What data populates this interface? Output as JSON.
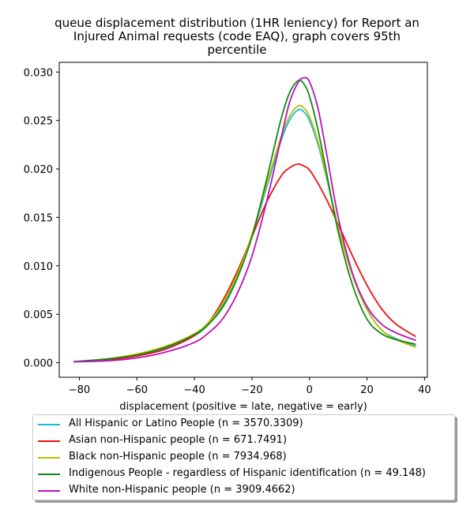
{
  "chart_data": {
    "type": "line",
    "title_lines": [
      "queue displacement distribution (1HR leniency) for Report an",
      "Injured Animal  requests (code EAQ), graph covers 95th",
      "percentile"
    ],
    "xlabel": "displacement (positive = late, negative = early)",
    "ylabel": "",
    "xlim": [
      -87,
      41
    ],
    "ylim": [
      -0.0015,
      0.031
    ],
    "xticks": [
      -80,
      -60,
      -40,
      -20,
      0,
      20,
      40
    ],
    "yticks": [
      0.0,
      0.005,
      0.01,
      0.015,
      0.02,
      0.025,
      0.03
    ],
    "ytick_labels": [
      "0.000",
      "0.005",
      "0.010",
      "0.015",
      "0.020",
      "0.025",
      "0.030"
    ],
    "grid": false,
    "legend_position": "below",
    "x": [
      -82,
      -70,
      -60,
      -50,
      -40,
      -35,
      -30,
      -25,
      -20,
      -15,
      -10,
      -7,
      -4,
      -2,
      0,
      3,
      6,
      10,
      15,
      20,
      25,
      30,
      37
    ],
    "series": [
      {
        "name": "All Hispanic or Latino People (n = 3570.3309)",
        "color": "#17becf",
        "values": [
          0.0001,
          0.0004,
          0.0008,
          0.0015,
          0.0028,
          0.004,
          0.006,
          0.009,
          0.013,
          0.018,
          0.0228,
          0.025,
          0.0261,
          0.0259,
          0.025,
          0.0225,
          0.019,
          0.014,
          0.009,
          0.0055,
          0.0034,
          0.0025,
          0.0017
        ]
      },
      {
        "name": "Asian non-Hispanic people (n = 671.7491)",
        "color": "#ee1111",
        "values": [
          0.0001,
          0.0003,
          0.0007,
          0.0014,
          0.0028,
          0.0042,
          0.0065,
          0.0095,
          0.013,
          0.0165,
          0.0192,
          0.0201,
          0.0205,
          0.0203,
          0.0199,
          0.0185,
          0.0168,
          0.0143,
          0.011,
          0.008,
          0.0056,
          0.004,
          0.0027
        ]
      },
      {
        "name": "Black non-Hispanic people (n = 7934.968)",
        "color": "#bcbd00",
        "values": [
          0.0001,
          0.0004,
          0.0009,
          0.0017,
          0.003,
          0.0042,
          0.0062,
          0.0092,
          0.0132,
          0.0183,
          0.0232,
          0.0254,
          0.0265,
          0.0263,
          0.0254,
          0.0228,
          0.0192,
          0.014,
          0.009,
          0.0055,
          0.0034,
          0.0024,
          0.0016
        ]
      },
      {
        "name": "Indigenous People - regardless of Hispanic identification (n = 49.148)",
        "color": "#118811",
        "values": [
          0.0001,
          0.0004,
          0.0008,
          0.0016,
          0.0029,
          0.004,
          0.0058,
          0.0088,
          0.013,
          0.0188,
          0.025,
          0.0278,
          0.0291,
          0.0288,
          0.0275,
          0.024,
          0.0195,
          0.0135,
          0.008,
          0.0045,
          0.003,
          0.0024,
          0.0019
        ]
      },
      {
        "name": "White non-Hispanic people (n = 3909.4662)",
        "color": "#bb11bb",
        "values": [
          0.0001,
          0.0002,
          0.0005,
          0.0011,
          0.0021,
          0.0031,
          0.0046,
          0.0072,
          0.011,
          0.0165,
          0.023,
          0.0268,
          0.0289,
          0.0294,
          0.029,
          0.0262,
          0.0215,
          0.015,
          0.0092,
          0.0058,
          0.004,
          0.0031,
          0.0023
        ]
      }
    ]
  }
}
